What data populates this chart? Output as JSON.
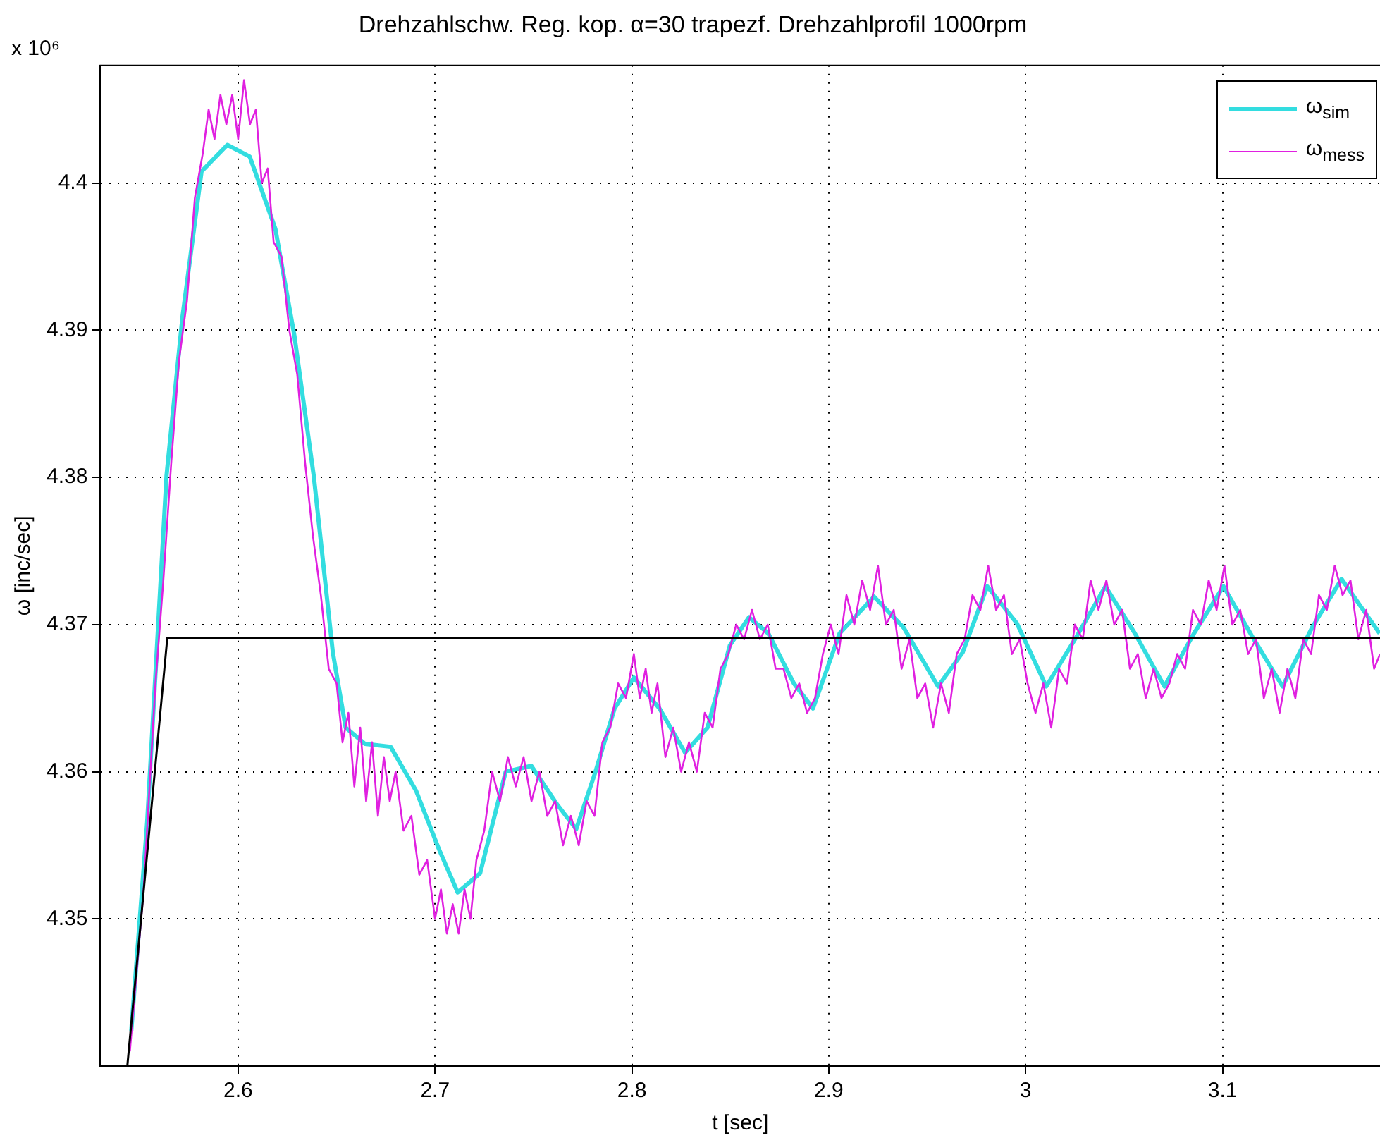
{
  "chart_data": {
    "type": "line",
    "title": "Drehzahlschw. Reg. kop. α=30 trapezf. Drehzahlprofil 1000rpm",
    "xlabel": "t [sec]",
    "ylabel": "ω [inc/sec]",
    "annotations": [
      "x 10⁶"
    ],
    "xlim": [
      2.53,
      3.18
    ],
    "xticks": [
      2.6,
      2.7,
      2.8,
      2.9,
      3,
      3.1
    ],
    "ylim": [
      4.34,
      4.408
    ],
    "yticks": [
      4.35,
      4.36,
      4.37,
      4.38,
      4.39,
      4.4
    ],
    "grid": true,
    "legend": "top right",
    "marker": "none",
    "line_style": "solid",
    "series": [
      {
        "name": "ω$_{sim}$",
        "color": "#33dde0",
        "x": [
          2.5457,
          2.5538,
          2.5636,
          2.5717,
          2.5814,
          2.5945,
          2.6059,
          2.6189,
          2.6286,
          2.6384,
          2.6481,
          2.6546,
          2.6644,
          2.6774,
          2.6904,
          2.7018,
          2.7115,
          2.7229,
          2.7359,
          2.7489,
          2.7619,
          2.7717,
          2.7815,
          2.7912,
          2.801,
          2.814,
          2.827,
          2.8384,
          2.8498,
          2.8595,
          2.8693,
          2.8823,
          2.892,
          2.9055,
          2.923,
          2.938,
          2.9555,
          2.968,
          2.9805,
          2.9955,
          3.0105,
          3.0255,
          3.0405,
          3.0555,
          3.0705,
          3.0855,
          3.1005,
          3.1155,
          3.1305,
          3.1455,
          3.1605,
          3.1798
        ],
        "values": [
          4.3424,
          4.3566,
          4.3801,
          4.3909,
          4.4008,
          4.4026,
          4.4018,
          4.3969,
          4.3896,
          4.3801,
          4.3681,
          4.363,
          4.3619,
          4.3617,
          4.3587,
          4.3548,
          4.3518,
          4.3531,
          4.36,
          4.3604,
          4.3578,
          4.3561,
          4.36,
          4.3643,
          4.3664,
          4.3643,
          4.3613,
          4.363,
          4.3686,
          4.3705,
          4.3694,
          4.366,
          4.3643,
          4.3694,
          4.3719,
          4.3698,
          4.3658,
          4.3681,
          4.3726,
          4.3701,
          4.3658,
          4.3691,
          4.3726,
          4.3694,
          4.3658,
          4.3694,
          4.3726,
          4.3691,
          4.3658,
          4.3698,
          4.3731,
          4.3694
        ]
      },
      {
        "name": "ω$_{mess}$",
        "color": "#e020e0",
        "x": [
          2.545,
          2.552,
          2.558,
          2.562,
          2.566,
          2.57,
          2.574,
          2.578,
          2.582,
          2.585,
          2.588,
          2.591,
          2.594,
          2.597,
          2.6,
          2.603,
          2.606,
          2.609,
          2.612,
          2.615,
          2.618,
          2.622,
          2.626,
          2.63,
          2.634,
          2.638,
          2.642,
          2.646,
          2.65,
          2.653,
          2.656,
          2.659,
          2.662,
          2.665,
          2.668,
          2.671,
          2.674,
          2.677,
          2.68,
          2.684,
          2.688,
          2.692,
          2.696,
          2.7,
          2.703,
          2.706,
          2.709,
          2.712,
          2.715,
          2.718,
          2.721,
          2.725,
          2.729,
          2.733,
          2.737,
          2.741,
          2.745,
          2.749,
          2.753,
          2.757,
          2.761,
          2.765,
          2.769,
          2.773,
          2.777,
          2.781,
          2.785,
          2.789,
          2.793,
          2.797,
          2.801,
          2.804,
          2.807,
          2.81,
          2.813,
          2.817,
          2.821,
          2.825,
          2.829,
          2.833,
          2.837,
          2.841,
          2.845,
          2.849,
          2.853,
          2.857,
          2.861,
          2.865,
          2.869,
          2.873,
          2.877,
          2.881,
          2.885,
          2.889,
          2.893,
          2.897,
          2.901,
          2.905,
          2.909,
          2.913,
          2.917,
          2.921,
          2.925,
          2.929,
          2.933,
          2.937,
          2.941,
          2.945,
          2.949,
          2.953,
          2.957,
          2.961,
          2.965,
          2.969,
          2.973,
          2.977,
          2.981,
          2.985,
          2.989,
          2.993,
          2.997,
          3.001,
          3.005,
          3.009,
          3.013,
          3.017,
          3.021,
          3.025,
          3.029,
          3.033,
          3.037,
          3.041,
          3.045,
          3.049,
          3.053,
          3.057,
          3.061,
          3.065,
          3.069,
          3.073,
          3.077,
          3.081,
          3.085,
          3.089,
          3.093,
          3.097,
          3.101,
          3.105,
          3.109,
          3.113,
          3.117,
          3.121,
          3.125,
          3.129,
          3.133,
          3.137,
          3.141,
          3.145,
          3.149,
          3.153,
          3.157,
          3.161,
          3.165,
          3.169,
          3.173,
          3.177,
          3.18
        ],
        "values": [
          4.341,
          4.352,
          4.366,
          4.373,
          4.381,
          4.388,
          4.392,
          4.399,
          4.402,
          4.405,
          4.403,
          4.406,
          4.404,
          4.406,
          4.403,
          4.407,
          4.404,
          4.405,
          4.4,
          4.401,
          4.396,
          4.395,
          4.39,
          4.387,
          4.381,
          4.376,
          4.372,
          4.367,
          4.366,
          4.362,
          4.364,
          4.359,
          4.363,
          4.358,
          4.362,
          4.357,
          4.361,
          4.358,
          4.36,
          4.356,
          4.357,
          4.353,
          4.354,
          4.35,
          4.352,
          4.349,
          4.351,
          4.349,
          4.352,
          4.35,
          4.354,
          4.356,
          4.36,
          4.358,
          4.361,
          4.359,
          4.361,
          4.358,
          4.36,
          4.357,
          4.358,
          4.355,
          4.357,
          4.355,
          4.358,
          4.357,
          4.362,
          4.363,
          4.366,
          4.365,
          4.368,
          4.365,
          4.367,
          4.364,
          4.366,
          4.361,
          4.363,
          4.36,
          4.362,
          4.36,
          4.364,
          4.363,
          4.367,
          4.368,
          4.37,
          4.369,
          4.371,
          4.369,
          4.37,
          4.367,
          4.367,
          4.365,
          4.366,
          4.364,
          4.365,
          4.368,
          4.37,
          4.368,
          4.372,
          4.37,
          4.373,
          4.371,
          4.374,
          4.37,
          4.371,
          4.367,
          4.369,
          4.365,
          4.366,
          4.363,
          4.366,
          4.364,
          4.368,
          4.369,
          4.372,
          4.371,
          4.374,
          4.371,
          4.372,
          4.368,
          4.369,
          4.366,
          4.364,
          4.366,
          4.363,
          4.367,
          4.366,
          4.37,
          4.369,
          4.373,
          4.371,
          4.373,
          4.37,
          4.371,
          4.367,
          4.368,
          4.365,
          4.367,
          4.365,
          4.366,
          4.368,
          4.367,
          4.371,
          4.37,
          4.373,
          4.371,
          4.374,
          4.37,
          4.371,
          4.368,
          4.369,
          4.365,
          4.367,
          4.364,
          4.367,
          4.365,
          4.369,
          4.368,
          4.372,
          4.371,
          4.374,
          4.372,
          4.373,
          4.369,
          4.371,
          4.367,
          4.368
        ]
      },
      {
        "color": "#000000",
        "x": [
          2.5437,
          2.564,
          3.18
        ],
        "values": [
          4.34,
          4.3691,
          4.3691
        ]
      }
    ]
  }
}
